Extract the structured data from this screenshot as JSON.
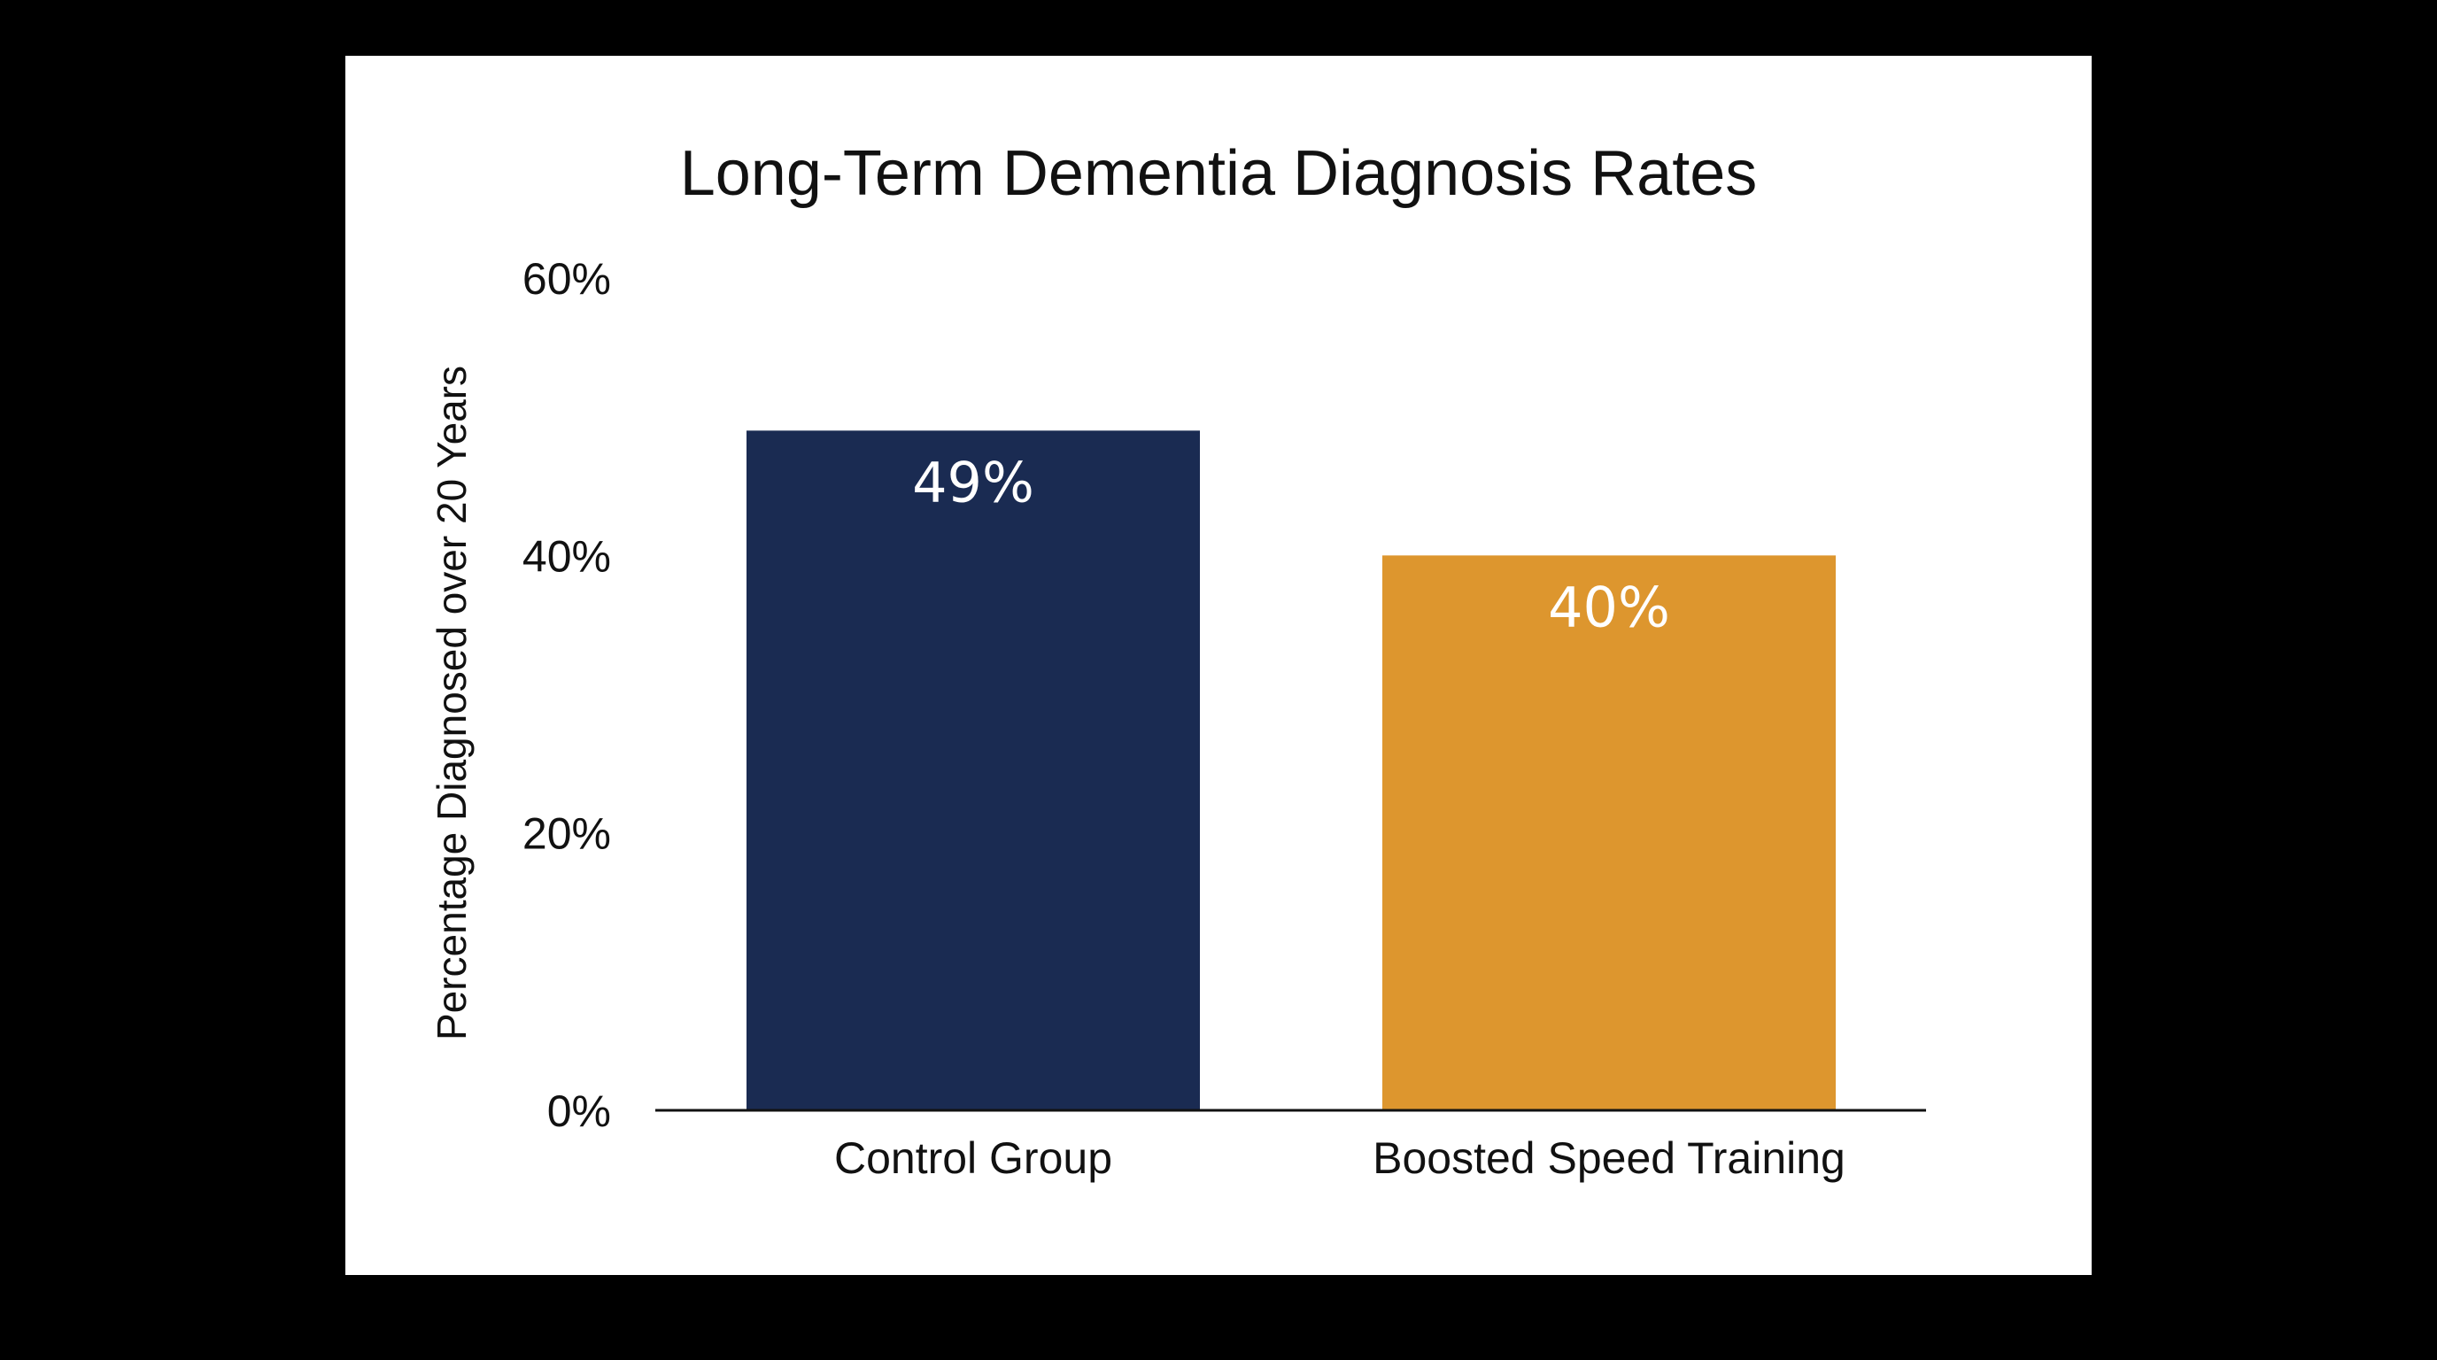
{
  "chart_data": {
    "type": "bar",
    "title": "Long-Term Dementia Diagnosis Rates",
    "xlabel": "",
    "ylabel": "Percentage Diagnosed over 20 Years",
    "ylim": [
      0,
      60
    ],
    "yticks": [
      0,
      20,
      40,
      60
    ],
    "ytick_labels": [
      "0%",
      "20%",
      "40%",
      "60%"
    ],
    "categories": [
      "Control Group",
      "Boosted Speed Training"
    ],
    "values": [
      49,
      40
    ],
    "data_labels": [
      "49%",
      "40%"
    ],
    "colors": [
      "#1a2b52",
      "#dd962e"
    ],
    "grid": false,
    "legend": "none"
  }
}
